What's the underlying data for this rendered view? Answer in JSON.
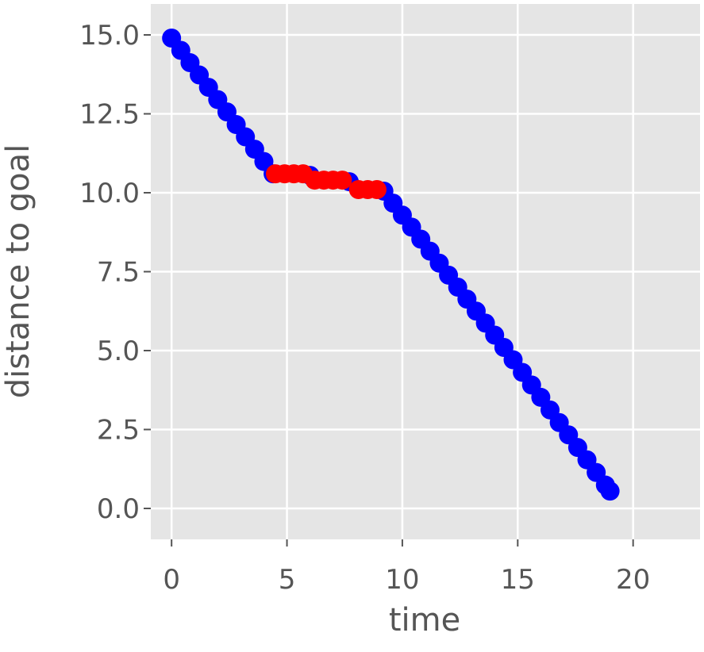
{
  "chart_data": {
    "type": "scatter",
    "x_label": "time",
    "y_label": "distance to goal",
    "xlim": [
      -0.9,
      22.9
    ],
    "ylim": [
      -0.98,
      15.98
    ],
    "xticks": [
      0,
      5,
      10,
      15,
      20
    ],
    "yticks": [
      {
        "value": 0,
        "label": "0.0"
      },
      {
        "value": 2.5,
        "label": "2.5"
      },
      {
        "value": 5,
        "label": "5.0"
      },
      {
        "value": 7.5,
        "label": "7.5"
      },
      {
        "value": 10,
        "label": "10.0"
      },
      {
        "value": 12.5,
        "label": "12.5"
      },
      {
        "value": 15,
        "label": "15.0"
      }
    ],
    "grid": true,
    "series": [
      {
        "color": "#0000ff",
        "x": [
          0,
          0.4,
          0.8,
          1.2,
          1.6,
          2.0,
          2.4,
          2.8,
          3.2,
          3.6,
          4.0,
          4.4,
          6.0,
          7.7,
          9.2,
          9.6,
          10.0,
          10.4,
          10.8,
          11.2,
          11.6,
          12.0,
          12.4,
          12.8,
          13.2,
          13.6,
          14.0,
          14.4,
          14.8,
          15.2,
          15.6,
          16.0,
          16.4,
          16.8,
          17.2,
          17.6,
          18.0,
          18.4,
          18.8,
          19.0
        ],
        "y": [
          14.9,
          14.51,
          14.12,
          13.73,
          13.34,
          12.95,
          12.56,
          12.16,
          11.77,
          11.38,
          10.99,
          10.6,
          10.55,
          10.35,
          10.05,
          9.67,
          9.29,
          8.91,
          8.53,
          8.15,
          7.77,
          7.39,
          7.01,
          6.63,
          6.25,
          5.87,
          5.49,
          5.1,
          4.71,
          4.31,
          3.91,
          3.52,
          3.12,
          2.72,
          2.33,
          1.93,
          1.54,
          1.14,
          0.74,
          0.55
        ]
      },
      {
        "color": "#ff0000",
        "x": [
          4.5,
          4.9,
          5.3,
          5.7,
          6.2,
          6.6,
          7.0,
          7.4,
          8.1,
          8.5,
          8.9
        ],
        "y": [
          10.6,
          10.6,
          10.6,
          10.6,
          10.4,
          10.4,
          10.4,
          10.4,
          10.1,
          10.1,
          10.1
        ]
      }
    ]
  }
}
